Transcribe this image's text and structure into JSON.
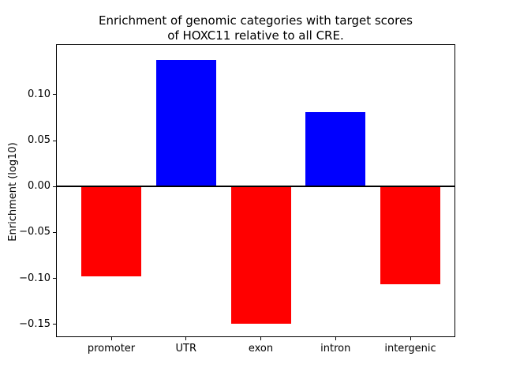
{
  "figure": {
    "title": "Enrichment of genomic categories with target scores\nof HOXC11 relative to all CRE.",
    "ylabel": "Enrichment (log10)"
  },
  "chart_data": {
    "type": "bar",
    "title": "Enrichment of genomic categories with target scores of HOXC11 relative to all CRE.",
    "xlabel": "",
    "ylabel": "Enrichment (log10)",
    "categories": [
      "promoter",
      "UTR",
      "exon",
      "intron",
      "intergenic"
    ],
    "values": [
      -0.098,
      0.138,
      -0.149,
      0.081,
      -0.106
    ],
    "bar_colors": [
      "#ff0000",
      "#0000ff",
      "#ff0000",
      "#0000ff",
      "#ff0000"
    ],
    "positive_color": "#0000ff",
    "negative_color": "#ff0000",
    "ylim": [
      -0.163,
      0.154
    ],
    "yticks": [
      0.1,
      0.05,
      0.0,
      -0.05,
      -0.1,
      -0.15
    ],
    "ytick_labels": [
      "0.10",
      "0.05",
      "0.00",
      "−0.05",
      "−0.10",
      "−0.15"
    ],
    "grid": false,
    "legend": "none",
    "zero_line": true,
    "background_color": "#ffffff",
    "spine_color": "#000000"
  }
}
